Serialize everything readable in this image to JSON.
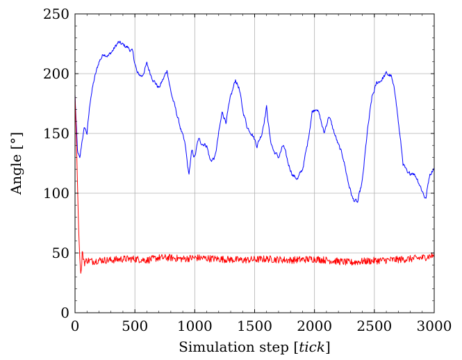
{
  "chart_data": {
    "type": "line",
    "xlabel": "Simulation step",
    "xlabel_unit": "tick",
    "ylabel": "Angle [°]",
    "xlim": [
      0,
      3000
    ],
    "ylim": [
      0,
      250
    ],
    "x_ticks": [
      0,
      500,
      1000,
      1500,
      2000,
      2500,
      3000
    ],
    "y_ticks": [
      0,
      50,
      100,
      150,
      200,
      250
    ],
    "x_tick_labels": [
      "0",
      "500",
      "1000",
      "1500",
      "2000",
      "2500",
      "3000"
    ],
    "y_tick_labels": [
      "0",
      "50",
      "100",
      "150",
      "200",
      "250"
    ],
    "grid": true,
    "legend": "none",
    "series": [
      {
        "color": "#0000ff",
        "x": [
          0,
          20,
          40,
          60,
          80,
          100,
          130,
          160,
          200,
          240,
          280,
          320,
          360,
          400,
          440,
          480,
          520,
          560,
          600,
          630,
          660,
          700,
          740,
          770,
          800,
          840,
          880,
          920,
          950,
          975,
          1000,
          1030,
          1060,
          1100,
          1130,
          1170,
          1200,
          1230,
          1260,
          1300,
          1340,
          1370,
          1400,
          1440,
          1480,
          1520,
          1560,
          1600,
          1630,
          1660,
          1700,
          1740,
          1780,
          1820,
          1860,
          1900,
          1940,
          1980,
          2020,
          2050,
          2080,
          2120,
          2160,
          2200,
          2240,
          2280,
          2320,
          2360,
          2400,
          2440,
          2480,
          2520,
          2560,
          2600,
          2640,
          2680,
          2700,
          2740,
          2780,
          2820,
          2860,
          2900,
          2930,
          2960,
          3000
        ],
        "y": [
          182,
          135,
          128,
          145,
          155,
          150,
          180,
          195,
          210,
          217,
          215,
          220,
          226,
          224,
          222,
          218,
          200,
          198,
          208,
          200,
          194,
          188,
          196,
          203,
          185,
          170,
          155,
          140,
          115,
          135,
          130,
          145,
          142,
          140,
          127,
          130,
          150,
          168,
          160,
          180,
          195,
          188,
          170,
          155,
          150,
          140,
          150,
          172,
          145,
          135,
          130,
          140,
          125,
          115,
          112,
          120,
          140,
          168,
          172,
          162,
          150,
          165,
          152,
          140,
          130,
          110,
          95,
          92,
          110,
          150,
          180,
          192,
          195,
          200,
          198,
          180,
          160,
          125,
          115,
          118,
          112,
          102,
          95,
          115,
          122
        ]
      },
      {
        "color": "#ff0000",
        "x": [
          0,
          10,
          20,
          30,
          40,
          50,
          60,
          80,
          100,
          150,
          200,
          300,
          400,
          500,
          600,
          700,
          800,
          900,
          1000,
          1200,
          1400,
          1600,
          1800,
          2000,
          2200,
          2300,
          2400,
          2600,
          2800,
          2900,
          3000
        ],
        "y": [
          182,
          150,
          110,
          70,
          45,
          30,
          50,
          42,
          44,
          43,
          44,
          44,
          45,
          45,
          44,
          46,
          46,
          45,
          46,
          45,
          44,
          45,
          44,
          45,
          43,
          42,
          43,
          44,
          45,
          46,
          48
        ]
      }
    ]
  }
}
